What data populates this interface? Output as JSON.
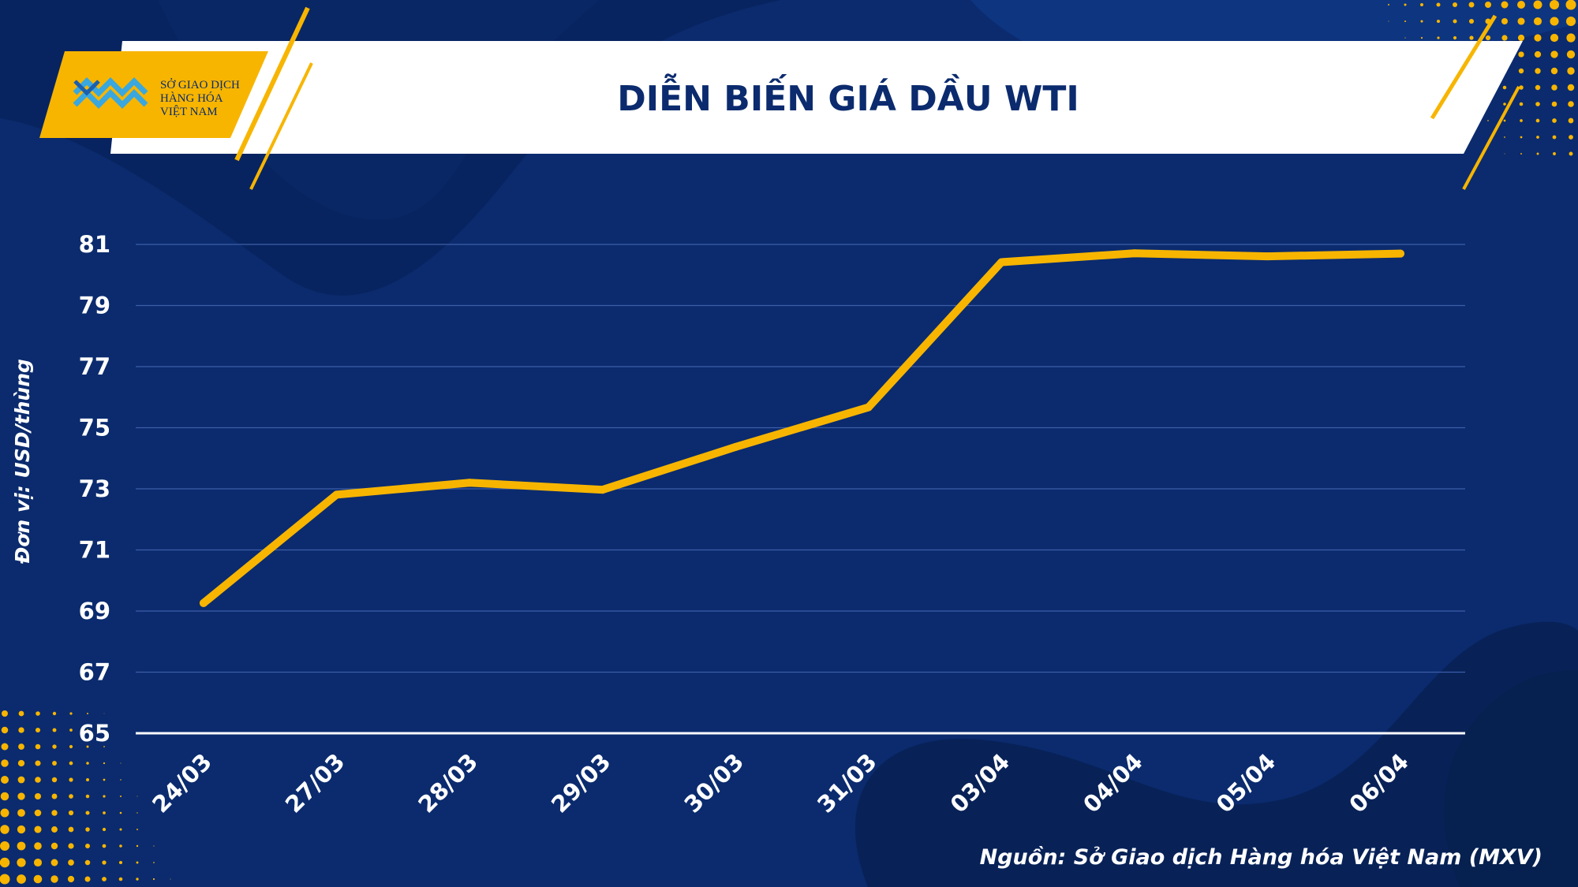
{
  "header": {
    "title": "DIỄN BIẾN GIÁ DẦU WTI",
    "logo_lines": [
      "SỞ GIAO DỊCH",
      "HÀNG HÓA",
      "VIỆT NAM"
    ]
  },
  "colors": {
    "background": "#0b2b6e",
    "accent": "#f7b500",
    "title": "#0b2b6e",
    "grid": "#3d5da8"
  },
  "footer": {
    "source": "Nguồn: Sở Giao dịch Hàng hóa Việt Nam (MXV)"
  },
  "chart_data": {
    "type": "line",
    "title": "DIỄN BIẾN GIÁ DẦU WTI",
    "ylabel": "Đơn vị: USD/thùng",
    "xlabel": "",
    "categories": [
      "24/03",
      "27/03",
      "28/03",
      "29/03",
      "30/03",
      "31/03",
      "03/04",
      "04/04",
      "05/04",
      "06/04"
    ],
    "series": [
      {
        "values": [
          69.26,
          72.81,
          73.2,
          72.97,
          74.37,
          75.67,
          80.42,
          80.71,
          80.61,
          80.7
        ]
      }
    ],
    "ylim": [
      65,
      81
    ],
    "yticks": [
      65,
      67,
      69,
      71,
      73,
      75,
      77,
      79,
      81
    ],
    "grid": true,
    "legend": "none"
  }
}
